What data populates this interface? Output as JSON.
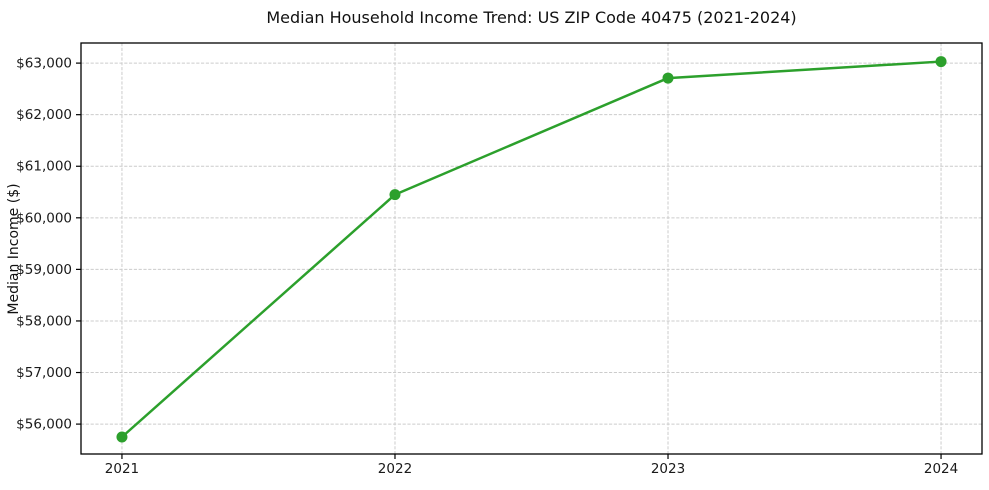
{
  "chart_data": {
    "type": "line",
    "title": "Median Household Income Trend: US ZIP Code 40475 (2021-2024)",
    "xlabel": "",
    "ylabel": "Median Income ($)",
    "x": [
      2021,
      2022,
      2023,
      2024
    ],
    "series": [
      {
        "name": "Median Household Income",
        "values": [
          55750,
          60450,
          62710,
          63030
        ],
        "color": "#2ca02c",
        "marker": "circle",
        "marker_radius": 5.5,
        "line_width": 2.5
      }
    ],
    "x_tick_labels": [
      "2021",
      "2022",
      "2023",
      "2024"
    ],
    "y_tick_values": [
      56000,
      57000,
      58000,
      59000,
      60000,
      61000,
      62000,
      63000
    ],
    "y_tick_labels": [
      "$56,000",
      "$57,000",
      "$58,000",
      "$59,000",
      "$60,000",
      "$61,000",
      "$62,000",
      "$63,000"
    ],
    "xlim": [
      2020.85,
      2024.15
    ],
    "ylim": [
      55420,
      63390
    ],
    "grid": true,
    "grid_style": "dashed",
    "grid_color": "#cccccc",
    "frame_color": "#000000",
    "legend": "none",
    "background_color": "#ffffff"
  }
}
